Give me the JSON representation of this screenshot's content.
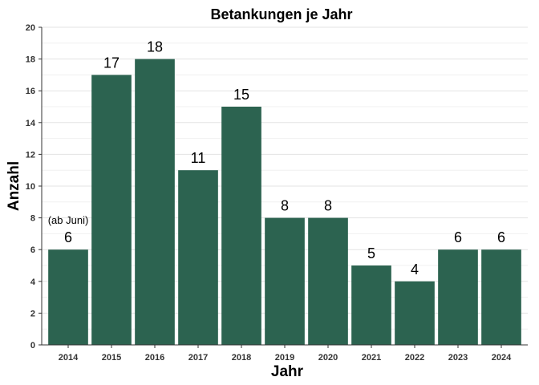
{
  "chart_data": {
    "type": "bar",
    "title": "Betankungen je Jahr",
    "xlabel": "Jahr",
    "ylabel": "Anzahl",
    "categories": [
      "2014",
      "2015",
      "2016",
      "2017",
      "2018",
      "2019",
      "2020",
      "2021",
      "2022",
      "2023",
      "2024"
    ],
    "values": [
      6,
      17,
      18,
      11,
      15,
      8,
      8,
      5,
      4,
      6,
      6
    ],
    "ylim": [
      0,
      20
    ],
    "yticks": [
      0,
      2,
      4,
      6,
      8,
      10,
      12,
      14,
      16,
      18,
      20
    ],
    "grid": true,
    "legend": "none",
    "bar_color": "#2c6350",
    "annotations": [
      {
        "category": "2014",
        "text": "(ab Juni)"
      }
    ]
  }
}
